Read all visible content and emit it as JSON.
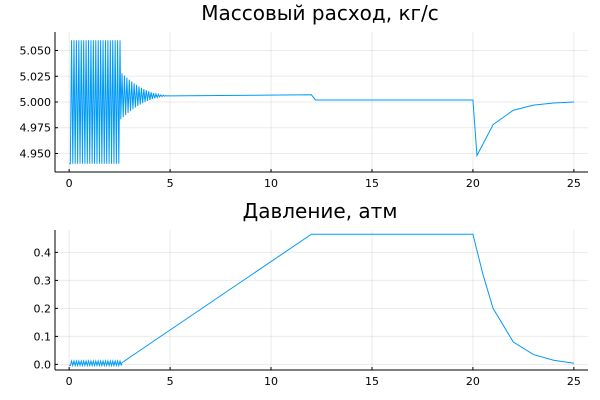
{
  "colors": {
    "series": "#009AFA",
    "background": "#FFFFFF"
  },
  "chart_data": [
    {
      "type": "line",
      "title": "Массовый расход, кг/с",
      "xlabel": "",
      "ylabel": "",
      "xlim": [
        -0.7,
        25.7
      ],
      "ylim": [
        4.932,
        5.068
      ],
      "xticks": [
        0,
        5,
        10,
        15,
        20,
        25
      ],
      "xtick_labels": [
        "0",
        "5",
        "10",
        "15",
        "20",
        "25"
      ],
      "yticks": [
        4.95,
        4.975,
        5.0,
        5.025,
        5.05
      ],
      "ytick_labels": [
        "4.950",
        "4.975",
        "5.000",
        "5.025",
        "5.050"
      ],
      "grid": true,
      "legend": "none",
      "series": [
        {
          "oscillation": {
            "t_start": 0,
            "t_end": 2.5,
            "center": 5.0,
            "amplitude": 0.06,
            "period": 0.12,
            "settle_center": 5.006,
            "settle_until": 5.0
          },
          "points": [
            [
              5.0,
              5.006
            ],
            [
              12.0,
              5.007
            ],
            [
              12.2,
              5.002
            ],
            [
              20.0,
              5.002
            ],
            [
              20.2,
              4.948
            ],
            [
              21.0,
              4.978
            ],
            [
              22.0,
              4.992
            ],
            [
              23.0,
              4.997
            ],
            [
              24.0,
              4.999
            ],
            [
              25.0,
              5.0
            ]
          ]
        }
      ]
    },
    {
      "type": "line",
      "title": "Давление, атм",
      "xlabel": "",
      "ylabel": "",
      "xlim": [
        -0.7,
        25.7
      ],
      "ylim": [
        -0.02,
        0.48
      ],
      "xticks": [
        0,
        5,
        10,
        15,
        20,
        25
      ],
      "xtick_labels": [
        "0",
        "5",
        "10",
        "15",
        "20",
        "25"
      ],
      "yticks": [
        0.0,
        0.1,
        0.2,
        0.3,
        0.4
      ],
      "ytick_labels": [
        "0.0",
        "0.1",
        "0.2",
        "0.3",
        "0.4"
      ],
      "grid": true,
      "legend": "none",
      "series": [
        {
          "oscillation": {
            "t_start": 0,
            "t_end": 2.6,
            "center": 0.004,
            "amplitude": 0.008,
            "period": 0.12
          },
          "points": [
            [
              2.6,
              0.005
            ],
            [
              3.0,
              0.025
            ],
            [
              12.0,
              0.465
            ],
            [
              20.0,
              0.465
            ],
            [
              20.5,
              0.32
            ],
            [
              21.0,
              0.2
            ],
            [
              22.0,
              0.08
            ],
            [
              23.0,
              0.035
            ],
            [
              24.0,
              0.015
            ],
            [
              25.0,
              0.004
            ]
          ]
        }
      ]
    }
  ]
}
